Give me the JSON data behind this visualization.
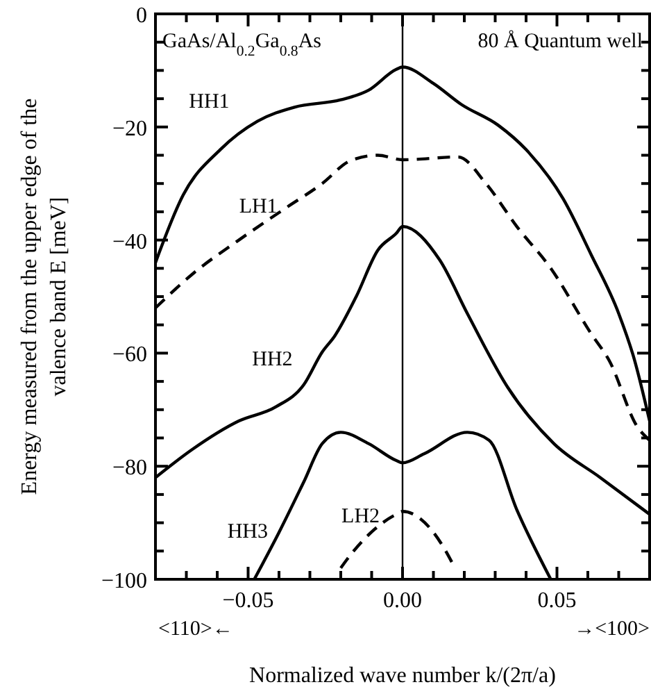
{
  "chart_data": {
    "type": "line",
    "xlabel": "Normalized wave number k/(2π/a)",
    "ylabel": "Energy measured from the upper edge of the valence band E [meV]",
    "xlim": [
      -0.08,
      0.08
    ],
    "ylim": [
      -100,
      0
    ],
    "xticks": [
      {
        "value": -0.08,
        "label": null
      },
      {
        "value": -0.07,
        "label": null
      },
      {
        "value": -0.06,
        "label": null
      },
      {
        "value": -0.05,
        "label": "−0.05"
      },
      {
        "value": -0.04,
        "label": null
      },
      {
        "value": -0.03,
        "label": null
      },
      {
        "value": -0.02,
        "label": null
      },
      {
        "value": -0.01,
        "label": null
      },
      {
        "value": 0,
        "label": "0.00"
      },
      {
        "value": 0.01,
        "label": null
      },
      {
        "value": 0.02,
        "label": null
      },
      {
        "value": 0.03,
        "label": null
      },
      {
        "value": 0.04,
        "label": null
      },
      {
        "value": 0.05,
        "label": "0.05"
      },
      {
        "value": 0.06,
        "label": null
      },
      {
        "value": 0.07,
        "label": null
      }
    ],
    "yticks": [
      {
        "value": -100,
        "label": "−100"
      },
      {
        "value": -95,
        "label": null
      },
      {
        "value": -90,
        "label": null
      },
      {
        "value": -85,
        "label": null
      },
      {
        "value": -80,
        "label": "−80"
      },
      {
        "value": -75,
        "label": null
      },
      {
        "value": -70,
        "label": null
      },
      {
        "value": -65,
        "label": null
      },
      {
        "value": -60,
        "label": "−60"
      },
      {
        "value": -55,
        "label": null
      },
      {
        "value": -50,
        "label": null
      },
      {
        "value": -45,
        "label": null
      },
      {
        "value": -40,
        "label": "−40"
      },
      {
        "value": -35,
        "label": null
      },
      {
        "value": -30,
        "label": null
      },
      {
        "value": -25,
        "label": null
      },
      {
        "value": -20,
        "label": "−20"
      },
      {
        "value": -15,
        "label": null
      },
      {
        "value": -10,
        "label": null
      },
      {
        "value": -5,
        "label": null
      },
      {
        "value": 0,
        "label": "0"
      }
    ],
    "grid": false,
    "marker": "none",
    "ref_lines": [
      {
        "axis": "x",
        "value": 0,
        "label": null,
        "color": "#000000"
      }
    ],
    "annotations": [
      "GaAs/Al$_{0.2}$Ga$_{0.8}$As",
      "80 Å Quantum well",
      "<110>←",
      "→<100>"
    ],
    "series": [
      {
        "name": "HH1",
        "color": "#000000",
        "line_style": "solid",
        "x": [
          -0.08,
          -0.071,
          -0.059,
          -0.047,
          -0.035,
          -0.02,
          -0.011,
          -0.002,
          0,
          0.01,
          0.019,
          0.031,
          0.04,
          0.052,
          0.061,
          0.07,
          0.075,
          0.08
        ],
        "values": [
          -44,
          -32,
          -24,
          -19,
          -16.5,
          -15.2,
          -13.5,
          -9.8,
          -9.4,
          -12.3,
          -16,
          -19.7,
          -24,
          -32.7,
          -42.5,
          -53,
          -61,
          -72
        ]
      },
      {
        "name": "LH1",
        "color": "#000000",
        "line_style": "dashed",
        "x": [
          -0.08,
          -0.068,
          -0.053,
          -0.038,
          -0.026,
          -0.017,
          -0.008,
          0,
          0.018,
          0.027,
          0.037,
          0.048,
          0.061,
          0.067,
          0.076,
          0.08
        ],
        "values": [
          -52,
          -46,
          -40,
          -34.4,
          -30,
          -26,
          -25,
          -25.8,
          -25.3,
          -30,
          -37.6,
          -45,
          -56.5,
          -61.4,
          -73,
          -75.4
        ]
      },
      {
        "name": "HH2",
        "color": "#000000",
        "line_style": "solid",
        "x": [
          -0.08,
          -0.068,
          -0.053,
          -0.041,
          -0.032,
          -0.026,
          -0.022,
          -0.015,
          -0.008,
          -0.002,
          0,
          0.012,
          0.021,
          0.034,
          0.049,
          0.064,
          0.08
        ],
        "values": [
          -82,
          -77,
          -72,
          -69.5,
          -65.6,
          -59.8,
          -57,
          -50,
          -41.8,
          -38.8,
          -37.6,
          -43.5,
          -53,
          -66,
          -76,
          -82,
          -88.5
        ]
      },
      {
        "name": "HH3",
        "color": "#000000",
        "line_style": "solid",
        "x": [
          -0.048,
          -0.04,
          -0.032,
          -0.026,
          -0.02,
          -0.011,
          -0.002,
          0,
          0.007,
          0.021,
          0.028,
          0.037,
          0.048
        ],
        "values": [
          -100,
          -91.7,
          -82.8,
          -76,
          -74,
          -76,
          -79,
          -79.4,
          -77.8,
          -74,
          -75.4,
          -87.7,
          -100
        ]
      },
      {
        "name": "LH2",
        "color": "#000000",
        "line_style": "dashed",
        "x": [
          -0.02,
          -0.018,
          -0.002,
          0,
          0.014,
          0.016
        ],
        "values": [
          -98,
          -96.5,
          -88.5,
          -88,
          -95,
          -97
        ]
      }
    ]
  }
}
